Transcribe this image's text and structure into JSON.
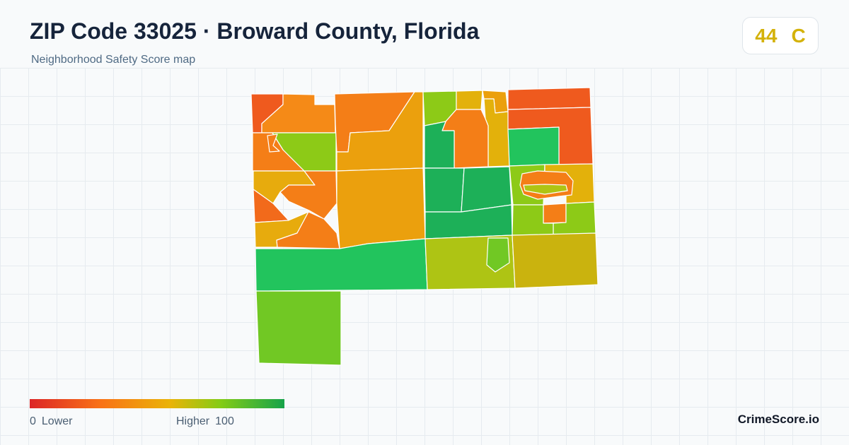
{
  "header": {
    "title": "ZIP Code 33025 · Broward County, Florida",
    "subtitle": "Neighborhood Safety Score map"
  },
  "score_badge": {
    "score": "44",
    "grade": "C",
    "color": "#d4b20a"
  },
  "legend": {
    "min_value": "0",
    "min_label": "Lower",
    "max_label": "Higher",
    "max_value": "100",
    "scale_colors": [
      "#dc2626",
      "#f97316",
      "#eab308",
      "#84cc16",
      "#16a34a"
    ]
  },
  "brand": "CrimeScore.io",
  "map": {
    "border_color": "#ffffff",
    "neighborhood_colors": {
      "orange_red": "#ef5a1e",
      "orange": "#f47e17",
      "amber": "#eba00d",
      "gold": "#e3b10b",
      "olive": "#aec414",
      "lime": "#8dca17",
      "yellow_green": "#71c824",
      "green": "#22c45d",
      "deep_green": "#1db058"
    }
  }
}
